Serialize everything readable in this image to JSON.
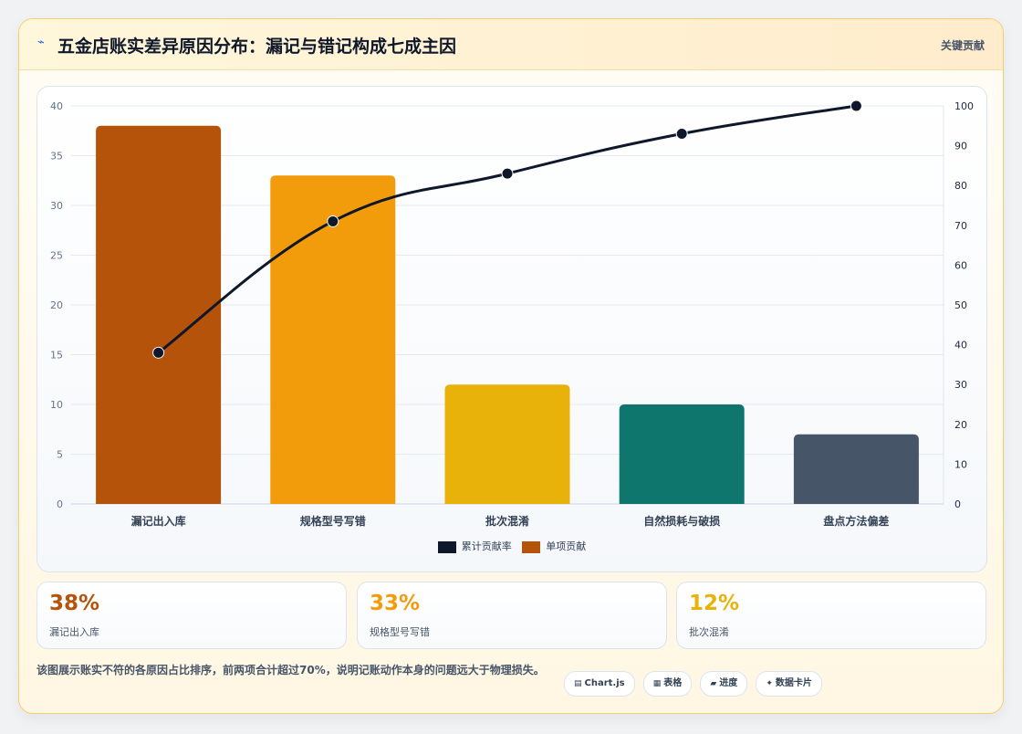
{
  "header": {
    "icon": "bolt-icon",
    "title": "五金店账实差异原因分布：漏记与错记构成七成主因",
    "right_label": "关键贡献"
  },
  "colors": {
    "bars": [
      "#b45309",
      "#f39c0b",
      "#e9b20a",
      "#0f766e",
      "#475569"
    ],
    "line": "#0f172a"
  },
  "chart_data": {
    "type": "bar",
    "categories": [
      "漏记出入库",
      "规格型号写错",
      "批次混淆",
      "自然损耗与破损",
      "盘点方法偏差"
    ],
    "series": [
      {
        "name": "单项贡献",
        "type": "bar",
        "axis": "left",
        "values": [
          38,
          33,
          12,
          10,
          7
        ]
      },
      {
        "name": "累计贡献率",
        "type": "line",
        "axis": "right",
        "values": [
          38,
          71,
          83,
          93,
          100
        ]
      }
    ],
    "ylim_left": [
      0,
      40
    ],
    "yticks_left": [
      0,
      5,
      10,
      15,
      20,
      25,
      30,
      35,
      40
    ],
    "ylim_right": [
      0,
      100
    ],
    "yticks_right": [
      0,
      10,
      20,
      30,
      40,
      50,
      60,
      70,
      80,
      90,
      100
    ],
    "grid": true,
    "legend_position": "bottom"
  },
  "legend": [
    {
      "label": "累计贡献率",
      "color": "#0f172a"
    },
    {
      "label": "单项贡献",
      "color": "#b45309"
    }
  ],
  "stats": [
    {
      "value": "38%",
      "label": "漏记出入库",
      "color": "#b45309"
    },
    {
      "value": "33%",
      "label": "规格型号写错",
      "color": "#f39c0b"
    },
    {
      "value": "12%",
      "label": "批次混淆",
      "color": "#e9b20a"
    }
  ],
  "footer": {
    "note": "该图展示账实不符的各原因占比排序，前两项合计超过70%，说明记账动作本身的问题远大于物理损失。",
    "pills": [
      {
        "icon": "chart-icon",
        "label": "Chart.js"
      },
      {
        "icon": "table-icon",
        "label": "表格"
      },
      {
        "icon": "progress-icon",
        "label": "进度"
      },
      {
        "icon": "card-icon",
        "label": "数据卡片"
      }
    ]
  }
}
